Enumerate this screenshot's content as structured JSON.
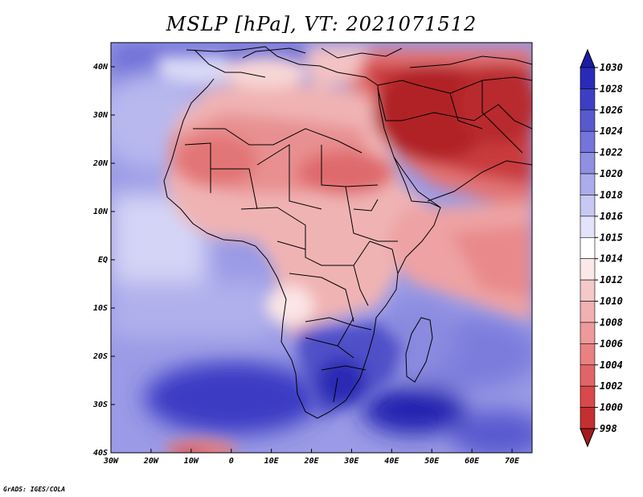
{
  "title": "MSLP [hPa], VT: 2021071512",
  "credit": "GrADS: IGES/COLA",
  "map": {
    "projection": "latlon",
    "lon_range": [
      -30,
      75
    ],
    "lat_range": [
      -40,
      45
    ],
    "lat_ticks": [
      {
        "v": 40,
        "label": "40N"
      },
      {
        "v": 30,
        "label": "30N"
      },
      {
        "v": 20,
        "label": "20N"
      },
      {
        "v": 10,
        "label": "10N"
      },
      {
        "v": 0,
        "label": "EQ"
      },
      {
        "v": -10,
        "label": "10S"
      },
      {
        "v": -20,
        "label": "20S"
      },
      {
        "v": -30,
        "label": "30S"
      },
      {
        "v": -40,
        "label": "40S"
      }
    ],
    "lon_ticks": [
      {
        "v": -30,
        "label": "30W"
      },
      {
        "v": -20,
        "label": "20W"
      },
      {
        "v": -10,
        "label": "10W"
      },
      {
        "v": 0,
        "label": "0"
      },
      {
        "v": 10,
        "label": "10E"
      },
      {
        "v": 20,
        "label": "20E"
      },
      {
        "v": 30,
        "label": "30E"
      },
      {
        "v": 40,
        "label": "40E"
      },
      {
        "v": 50,
        "label": "50E"
      },
      {
        "v": 60,
        "label": "60E"
      },
      {
        "v": 70,
        "label": "70E"
      }
    ]
  },
  "colorbar": {
    "labels": [
      "998",
      "1000",
      "1002",
      "1004",
      "1006",
      "1008",
      "1010",
      "1012",
      "1014",
      "1015",
      "1016",
      "1018",
      "1020",
      "1022",
      "1024",
      "1026",
      "1028",
      "1030"
    ],
    "colors": [
      "#a31a1c",
      "#c42f31",
      "#d9484a",
      "#e36466",
      "#e98183",
      "#ee999b",
      "#f1b0b1",
      "#f5c9c9",
      "#fbe8e8",
      "#ffffff",
      "#e3e3fb",
      "#c8c8f4",
      "#acacec",
      "#9090e3",
      "#7474da",
      "#5959cf",
      "#3e3ec5",
      "#2a2ab8",
      "#1c1ca3"
    ]
  }
}
